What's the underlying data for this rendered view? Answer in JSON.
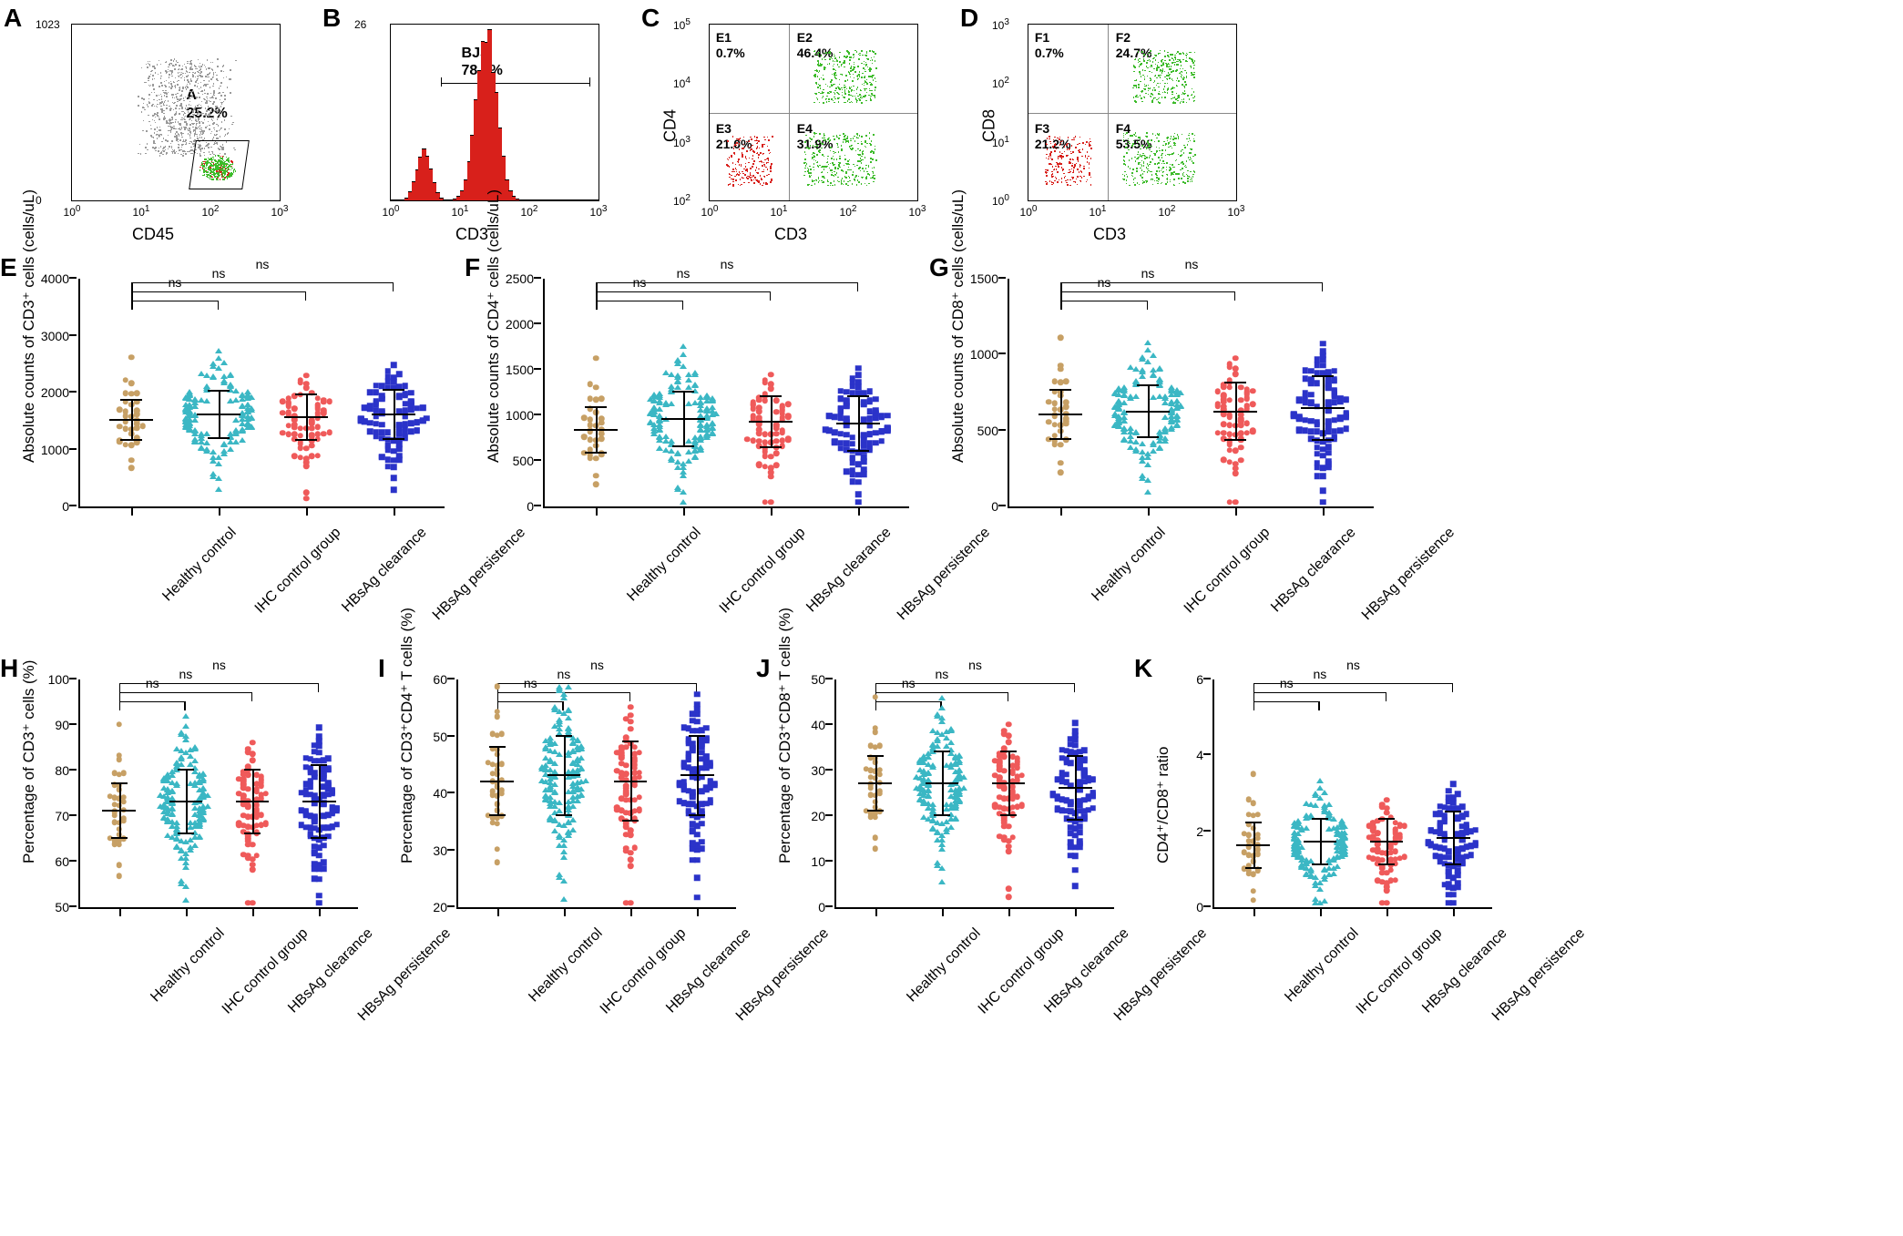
{
  "colors": {
    "healthy": "#c7a065",
    "ihc": "#3bb7c4",
    "clear": "#ef5a5a",
    "persist": "#2b33c9",
    "red_fill": "#d8201b",
    "scatter_gray": "#9a9a9a",
    "scatter_green": "#3dbb2a",
    "scatter_red": "#d8201b"
  },
  "categories": [
    "Healthy control",
    "IHC control group",
    "HBsAg clearance",
    "HBsAg persistence"
  ],
  "markers": [
    "circ",
    "tri",
    "circ",
    "square"
  ],
  "group_n": [
    35,
    180,
    80,
    110
  ],
  "panelsAD": {
    "A": {
      "xaxis": "CD45",
      "yaxis_ticks": [
        "0",
        "1023"
      ],
      "xticks": [
        "10^0",
        "10^1",
        "10^2",
        "10^3"
      ],
      "gate_label": "A",
      "gate_pct": "25.2%"
    },
    "B": {
      "xaxis": "CD3",
      "yaxis_ticks": [
        "0",
        "26"
      ],
      "xticks": [
        "10^0",
        "10^1",
        "10^2",
        "10^3"
      ],
      "gate_label": "BJS",
      "gate_pct": "78.4%"
    },
    "C": {
      "xaxis": "CD3",
      "yaxis": "CD4",
      "yticks": [
        "10^2",
        "10^3",
        "10^4",
        "10^5"
      ],
      "xticks": [
        "10^0",
        "10^1",
        "10^2",
        "10^3"
      ],
      "quads": [
        {
          "id": "E1",
          "pct": "0.7%"
        },
        {
          "id": "E2",
          "pct": "46.4%"
        },
        {
          "id": "E3",
          "pct": "21.0%"
        },
        {
          "id": "E4",
          "pct": "31.9%"
        }
      ]
    },
    "D": {
      "xaxis": "CD3",
      "yaxis": "CD8",
      "yticks": [
        "10^0",
        "10^1",
        "10^2",
        "10^3"
      ],
      "xticks": [
        "10^0",
        "10^1",
        "10^2",
        "10^3"
      ],
      "quads": [
        {
          "id": "F1",
          "pct": "0.7%"
        },
        {
          "id": "F2",
          "pct": "24.7%"
        },
        {
          "id": "F3",
          "pct": "21.2%"
        },
        {
          "id": "F4",
          "pct": "53.5%"
        }
      ]
    }
  },
  "dotpanels": {
    "E": {
      "ylabel": "Absolute counts of CD3⁺ cells (cells/uL)",
      "ymax": 4000,
      "ystep": 1000,
      "means": [
        1500,
        1600,
        1550,
        1600
      ],
      "sd": [
        350,
        420,
        400,
        430
      ],
      "sig": [
        "ns",
        "ns",
        "ns"
      ]
    },
    "F": {
      "ylabel": "Absolute counts of CD4⁺ cells (cells/uL)",
      "ymax": 2500,
      "ystep": 500,
      "means": [
        830,
        950,
        920,
        900
      ],
      "sd": [
        250,
        300,
        280,
        300
      ],
      "sig": [
        "ns",
        "ns",
        "ns"
      ]
    },
    "G": {
      "ylabel": "Absolute counts of CD8⁺ cells (cells/uL)",
      "ymax": 1500,
      "ystep": 500,
      "means": [
        600,
        620,
        620,
        640
      ],
      "sd": [
        160,
        170,
        190,
        210
      ],
      "sig": [
        "ns",
        "ns",
        "ns"
      ]
    },
    "H": {
      "ylabel": "Percentage of CD3⁺ cells (%)",
      "ymin": 50,
      "ymax": 100,
      "ystep": 10,
      "means": [
        71,
        73,
        73,
        73
      ],
      "sd": [
        6,
        7,
        7,
        8
      ],
      "sig": [
        "ns",
        "ns",
        "ns"
      ]
    },
    "I": {
      "ylabel": "Percentage of CD3⁺CD4⁺ T cells (%)",
      "ymin": 20,
      "ymax": 60,
      "ystep": 10,
      "means": [
        42,
        43,
        42,
        43
      ],
      "sd": [
        6,
        7,
        7,
        7
      ],
      "sig": [
        "ns",
        "ns",
        "ns"
      ]
    },
    "J": {
      "ylabel": "Percentage of CD3⁺CD8⁺ T cells (%)",
      "ymin": 0,
      "ymax": 50,
      "ystep": 10,
      "means": [
        27,
        27,
        27,
        26
      ],
      "sd": [
        6,
        7,
        7,
        7
      ],
      "sig": [
        "ns",
        "ns",
        "ns"
      ]
    },
    "K": {
      "ylabel": "CD4⁺/CD8⁺ ratio",
      "ymin": 0,
      "ymax": 6,
      "ystep": 2,
      "means": [
        1.6,
        1.7,
        1.7,
        1.8
      ],
      "sd": [
        0.6,
        0.6,
        0.6,
        0.7
      ],
      "sig": [
        "ns",
        "ns",
        "ns"
      ]
    }
  }
}
